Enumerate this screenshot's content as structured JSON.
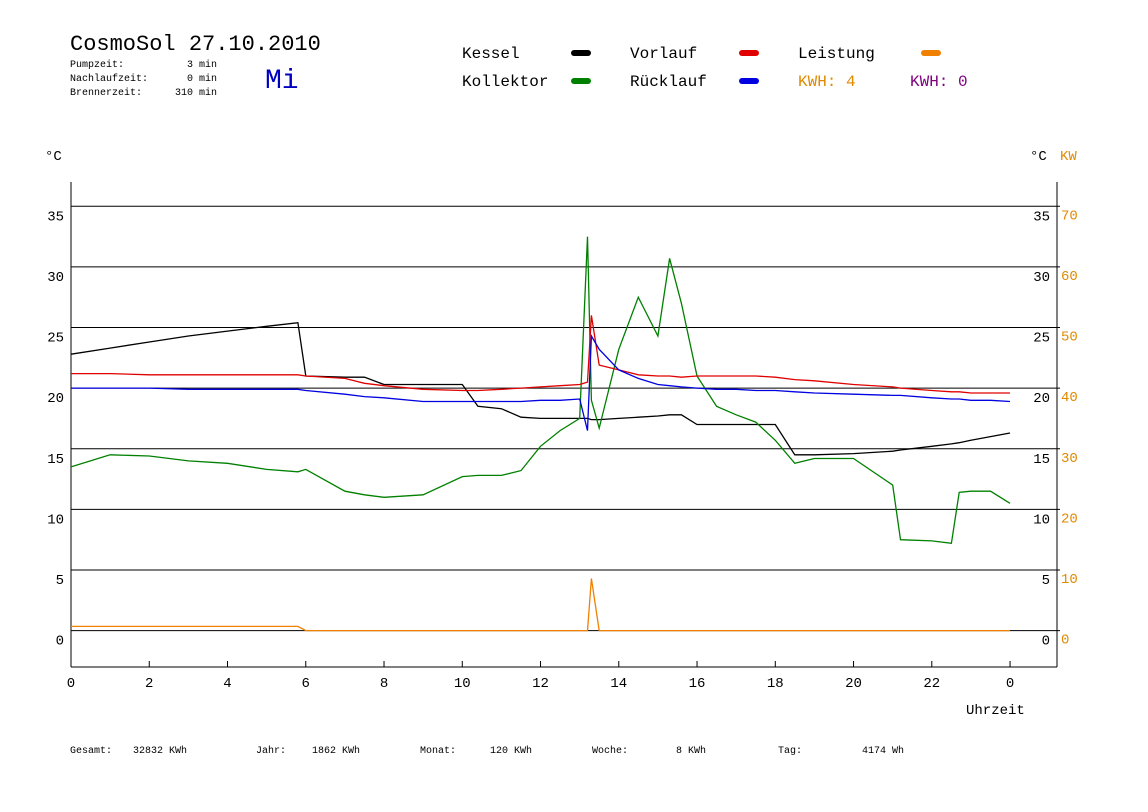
{
  "chart_data": {
    "type": "line",
    "title": "CosmoSol 27.10.2010",
    "weekday": "Mi",
    "info": [
      {
        "label": "Pumpzeit:",
        "value": "3 min"
      },
      {
        "label": "Nachlaufzeit:",
        "value": "0 min"
      },
      {
        "label": "Brennerzeit:",
        "value": "310 min"
      }
    ],
    "kwh_labels": [
      {
        "text": "KWH: 4",
        "color": "#e08a00"
      },
      {
        "text": "KWH: 0",
        "color": "#800080"
      }
    ],
    "y_label": "°C",
    "y2_label": "°C",
    "y2_unit_label": "KW",
    "x_label": "Uhrzeit",
    "totals": [
      {
        "label": "Gesamt:",
        "value": "32832 KWh"
      },
      {
        "label": "Jahr:",
        "value": "1862 KWh"
      },
      {
        "label": "Monat:",
        "value": "120 KWh"
      },
      {
        "label": "Woche:",
        "value": "8 KWh"
      },
      {
        "label": "Tag:",
        "value": "4174 Wh"
      }
    ],
    "xlim": [
      0,
      25.2
    ],
    "xticks": [
      0,
      2,
      4,
      6,
      8,
      10,
      12,
      14,
      16,
      18,
      20,
      22,
      {
        "value": 24,
        "label": "0"
      }
    ],
    "ylim": [
      -3,
      37
    ],
    "yticks": [
      0,
      5,
      10,
      15,
      20,
      25,
      30,
      35
    ],
    "y2lim": [
      -6,
      74
    ],
    "y2ticks": [
      0,
      10,
      20,
      30,
      40,
      50,
      60,
      70
    ],
    "grid": true,
    "x": [
      0,
      1,
      2,
      3,
      4,
      5,
      5.8,
      6,
      7,
      7.5,
      8,
      9,
      10,
      10.4,
      11,
      11.5,
      12,
      12.5,
      13,
      13.2,
      13.3,
      13.5,
      14,
      14.5,
      15,
      15.3,
      15.6,
      16,
      16.5,
      17,
      17.5,
      18,
      18.5,
      19,
      20,
      21,
      21.2,
      22,
      22.5,
      22.7,
      23,
      23.5,
      24
    ],
    "series": [
      {
        "name": "Kessel",
        "color": "#000000",
        "values": [
          22.8,
          23.3,
          23.8,
          24.3,
          24.7,
          25.1,
          25.4,
          21,
          20.9,
          20.9,
          20.3,
          20.3,
          20.3,
          18.5,
          18.3,
          17.6,
          17.5,
          17.5,
          17.5,
          17.5,
          17.4,
          17.4,
          17.5,
          17.6,
          17.7,
          17.8,
          17.8,
          17,
          17,
          17,
          17,
          17,
          14.5,
          14.5,
          14.6,
          14.8,
          14.9,
          15.2,
          15.4,
          15.5,
          15.7,
          16,
          16.3
        ]
      },
      {
        "name": "Kollektor",
        "color": "#008000",
        "values": [
          13.5,
          14.5,
          14.4,
          14,
          13.8,
          13.3,
          13.1,
          13.3,
          11.5,
          11.2,
          11,
          11.2,
          12.7,
          12.8,
          12.8,
          13.2,
          15.2,
          16.5,
          17.5,
          32.5,
          19,
          16.7,
          23.2,
          27.5,
          24.3,
          30.7,
          27,
          21,
          18.5,
          17.8,
          17.2,
          15.7,
          13.8,
          14.2,
          14.2,
          12,
          7.5,
          7.4,
          7.2,
          11.4,
          11.5,
          11.5,
          10.5
        ]
      },
      {
        "name": "Vorlauf",
        "color": "#e00000",
        "values": [
          21.2,
          21.2,
          21.1,
          21.1,
          21.1,
          21.1,
          21.1,
          21,
          20.8,
          20.4,
          20.2,
          19.9,
          19.8,
          19.8,
          19.9,
          20,
          20.1,
          20.2,
          20.3,
          20.5,
          26,
          21.9,
          21.5,
          21.1,
          21,
          21,
          20.9,
          21,
          21,
          21,
          21,
          20.9,
          20.7,
          20.6,
          20.3,
          20.1,
          20,
          19.8,
          19.7,
          19.7,
          19.6,
          19.6,
          19.6
        ]
      },
      {
        "name": "Rücklauf",
        "color": "#0000e0",
        "values": [
          20,
          20,
          20,
          19.9,
          19.9,
          19.9,
          19.9,
          19.8,
          19.5,
          19.3,
          19.2,
          18.9,
          18.9,
          18.9,
          18.9,
          18.9,
          19,
          19,
          19.1,
          16.5,
          24.3,
          23.2,
          21.5,
          20.8,
          20.3,
          20.2,
          20.1,
          20,
          19.9,
          19.9,
          19.8,
          19.8,
          19.7,
          19.6,
          19.5,
          19.4,
          19.4,
          19.2,
          19.1,
          19.1,
          19,
          19,
          18.9
        ]
      },
      {
        "name": "Leistung",
        "color": "#f08000",
        "axis": "y2",
        "values": [
          0.7,
          0.7,
          0.7,
          0.7,
          0.7,
          0.7,
          0.7,
          0,
          0,
          0,
          0,
          0,
          0,
          0,
          0,
          0,
          0,
          0,
          0,
          0,
          8.6,
          0,
          0,
          0,
          0,
          0,
          0,
          0,
          0,
          0,
          0,
          0,
          0,
          0,
          0,
          0,
          0,
          0,
          0,
          0,
          0,
          0,
          0
        ]
      }
    ]
  }
}
